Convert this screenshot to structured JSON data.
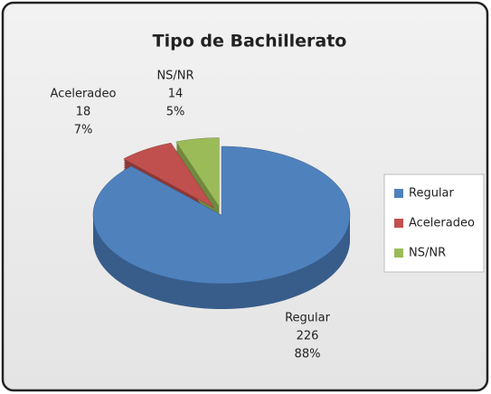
{
  "chart_data": {
    "type": "pie",
    "title": "Tipo de Bachillerato",
    "categories": [
      "Regular",
      "Aceleradeo",
      "NS/NR"
    ],
    "values": [
      226,
      18,
      14
    ],
    "percent_labels": [
      "88%",
      "7%",
      "5%"
    ],
    "colors": [
      "#4f81bd",
      "#c0504d",
      "#9bbb59"
    ],
    "side_colors": [
      "#385d8a",
      "#8c3836",
      "#71893f"
    ],
    "legend": "right"
  }
}
